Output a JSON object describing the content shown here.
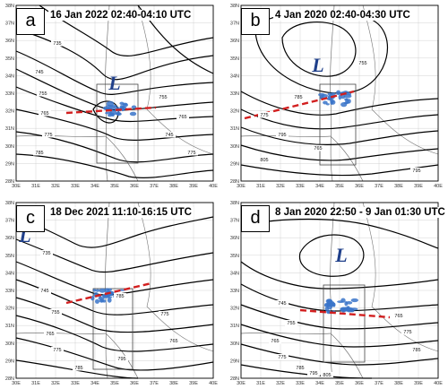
{
  "panels": [
    {
      "letter": "a",
      "title": "16 Jan 2022 02:40-04:10 UTC",
      "low_symbol": "L",
      "contour_labels": [
        "735",
        "745",
        "755",
        "765",
        "775",
        "785",
        "745",
        "755",
        "765",
        "775"
      ]
    },
    {
      "letter": "b",
      "title": "4 Jan 2020 02:40-04:30 UTC",
      "low_symbol": "L",
      "contour_labels": [
        "785",
        "755",
        "775",
        "795",
        "765",
        "805",
        "795"
      ]
    },
    {
      "letter": "c",
      "title": "18 Dec 2021 11:10-16:15 UTC",
      "low_symbol": "L",
      "contour_labels": [
        "735",
        "745",
        "755",
        "765",
        "775",
        "785",
        "795",
        "765",
        "775",
        "785"
      ]
    },
    {
      "letter": "d",
      "title": "8 Jan 2020 22:50 - 9 Jan 01:30 UTC",
      "low_symbol": "L",
      "contour_labels": [
        "745",
        "755",
        "765",
        "775",
        "785",
        "795",
        "805",
        "765",
        "775",
        "785"
      ]
    }
  ],
  "lat_labels": [
    "38N",
    "37N",
    "36N",
    "35N",
    "34N",
    "33N",
    "32N",
    "31N",
    "30N",
    "29N",
    "28N"
  ],
  "lon_labels": [
    "30E",
    "31E",
    "32E",
    "33E",
    "34E",
    "35E",
    "36E",
    "37E",
    "38E",
    "39E",
    "40E"
  ],
  "colors": {
    "contour": "#000000",
    "coast": "#777777",
    "grid": "#c8c8c8",
    "precip": "#3a74c9",
    "front": "#d21f1f",
    "low": "#1f3f8a"
  }
}
